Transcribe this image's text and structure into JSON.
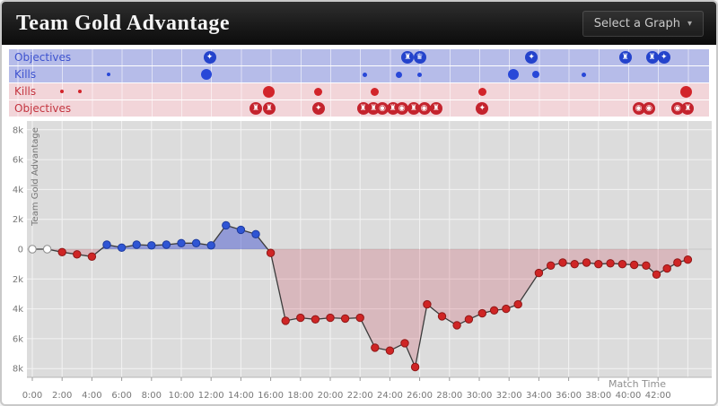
{
  "header": {
    "title": "Team Gold Advantage",
    "select_graph_label": "Select a Graph",
    "dropdown_icon": "▾"
  },
  "colors": {
    "blue": "#2f55d4",
    "blue_dark": "#1d3a9e",
    "red": "#cf2525",
    "red_dark": "#8f1717",
    "lane_blue_bg": "#b6bce9",
    "lane_red_bg": "#f2d5d9",
    "blue_fill": "rgba(72,88,208,0.50)",
    "red_fill": "rgba(204,60,80,0.22)",
    "plot_bg": "#dcdcdc"
  },
  "icon_glyphs": {
    "turret": "♜",
    "dragon": "✦",
    "baron": "♛",
    "inhibitor": "◉"
  },
  "lanes": [
    {
      "id": "blue-objectives",
      "kind": "objectives",
      "label": "Objectives",
      "bg": "#b6bce9",
      "text_color": "#3d52cf",
      "marker_color": "#2443cc",
      "events": [
        {
          "t": 11.9,
          "icon": "dragon"
        },
        {
          "t": 25.2,
          "icon": "turret"
        },
        {
          "t": 26.0,
          "icon": "baron"
        },
        {
          "t": 33.5,
          "icon": "dragon"
        },
        {
          "t": 39.8,
          "icon": "turret"
        },
        {
          "t": 41.6,
          "icon": "turret"
        },
        {
          "t": 42.4,
          "icon": "dragon"
        }
      ]
    },
    {
      "id": "blue-kills",
      "kind": "kills",
      "label": "Kills",
      "bg": "#b6bce9",
      "text_color": "#3d52cf",
      "marker_color": "#2848d8",
      "events": [
        {
          "t": 5.1,
          "r": 2
        },
        {
          "t": 11.7,
          "r": 6
        },
        {
          "t": 22.3,
          "r": 2.5
        },
        {
          "t": 24.6,
          "r": 3.5
        },
        {
          "t": 26.0,
          "r": 2.5
        },
        {
          "t": 32.3,
          "r": 6
        },
        {
          "t": 33.8,
          "r": 4
        },
        {
          "t": 37.0,
          "r": 2.5
        }
      ]
    },
    {
      "id": "red-kills",
      "kind": "kills",
      "label": "Kills",
      "bg": "#f2d5d9",
      "text_color": "#c43540",
      "marker_color": "#d2242a",
      "events": [
        {
          "t": 2.0,
          "r": 2
        },
        {
          "t": 3.2,
          "r": 2
        },
        {
          "t": 15.9,
          "r": 6.5
        },
        {
          "t": 19.2,
          "r": 4.5
        },
        {
          "t": 23.0,
          "r": 4.5
        },
        {
          "t": 30.2,
          "r": 4.5
        },
        {
          "t": 43.9,
          "r": 6.5
        }
      ]
    },
    {
      "id": "red-objectives",
      "kind": "objectives",
      "label": "Objectives",
      "bg": "#f2d5d9",
      "text_color": "#c43540",
      "marker_color": "#c4232d",
      "events": [
        {
          "t": 15.0,
          "icon": "turret"
        },
        {
          "t": 15.9,
          "icon": "turret"
        },
        {
          "t": 19.2,
          "icon": "dragon"
        },
        {
          "t": 22.2,
          "icon": "turret"
        },
        {
          "t": 22.9,
          "icon": "turret"
        },
        {
          "t": 23.5,
          "icon": "inhibitor"
        },
        {
          "t": 24.2,
          "icon": "turret"
        },
        {
          "t": 24.8,
          "icon": "inhibitor"
        },
        {
          "t": 25.6,
          "icon": "turret"
        },
        {
          "t": 26.3,
          "icon": "inhibitor"
        },
        {
          "t": 27.1,
          "icon": "turret"
        },
        {
          "t": 30.2,
          "icon": "dragon"
        },
        {
          "t": 40.7,
          "icon": "inhibitor"
        },
        {
          "t": 41.4,
          "icon": "inhibitor"
        },
        {
          "t": 43.3,
          "icon": "inhibitor"
        },
        {
          "t": 44.0,
          "icon": "turret"
        }
      ]
    }
  ],
  "chart_data": {
    "type": "line",
    "title": "Team Gold Advantage",
    "xlabel": "Match Time",
    "ylabel": "Team Gold Advantage",
    "x_unit": "minutes",
    "y_unit": "gold",
    "ylim": [
      -8600,
      8600
    ],
    "xlim": [
      0,
      44.5
    ],
    "grid": true,
    "x_ticks": [
      "0:00",
      "2:00",
      "4:00",
      "6:00",
      "8:00",
      "10:00",
      "12:00",
      "14:00",
      "16:00",
      "18:00",
      "20:00",
      "22:00",
      "24:00",
      "26:00",
      "28:00",
      "30:00",
      "32:00",
      "34:00",
      "36:00",
      "38:00",
      "40:00",
      "42:00"
    ],
    "y_ticks": [
      {
        "v": 8000,
        "label": "8k"
      },
      {
        "v": 6000,
        "label": "6k"
      },
      {
        "v": 4000,
        "label": "4k"
      },
      {
        "v": 2000,
        "label": "2k"
      },
      {
        "v": 0,
        "label": "0"
      },
      {
        "v": -2000,
        "label": "2k"
      },
      {
        "v": -4000,
        "label": "4k"
      },
      {
        "v": -6000,
        "label": "6k"
      },
      {
        "v": -8000,
        "label": "8k"
      }
    ],
    "points": [
      {
        "t": 0,
        "v": 0
      },
      {
        "t": 1,
        "v": 0
      },
      {
        "t": 2,
        "v": -200
      },
      {
        "t": 3,
        "v": -350
      },
      {
        "t": 4,
        "v": -500
      },
      {
        "t": 5,
        "v": 300
      },
      {
        "t": 6,
        "v": 100
      },
      {
        "t": 7,
        "v": 300
      },
      {
        "t": 8,
        "v": 250
      },
      {
        "t": 9,
        "v": 300
      },
      {
        "t": 10,
        "v": 400
      },
      {
        "t": 11,
        "v": 400
      },
      {
        "t": 12,
        "v": 250
      },
      {
        "t": 13,
        "v": 1600
      },
      {
        "t": 14,
        "v": 1300
      },
      {
        "t": 15,
        "v": 1000
      },
      {
        "t": 16,
        "v": -250
      },
      {
        "t": 17,
        "v": -4800
      },
      {
        "t": 18,
        "v": -4600
      },
      {
        "t": 19,
        "v": -4700
      },
      {
        "t": 20,
        "v": -4600
      },
      {
        "t": 21,
        "v": -4650
      },
      {
        "t": 22,
        "v": -4600
      },
      {
        "t": 23,
        "v": -6600
      },
      {
        "t": 24,
        "v": -6800
      },
      {
        "t": 25,
        "v": -6300
      },
      {
        "t": 25.7,
        "v": -7900
      },
      {
        "t": 26.5,
        "v": -3700
      },
      {
        "t": 27.5,
        "v": -4500
      },
      {
        "t": 28.5,
        "v": -5100
      },
      {
        "t": 29.3,
        "v": -4700
      },
      {
        "t": 30.2,
        "v": -4300
      },
      {
        "t": 31,
        "v": -4100
      },
      {
        "t": 31.8,
        "v": -4000
      },
      {
        "t": 32.6,
        "v": -3700
      },
      {
        "t": 34,
        "v": -1600
      },
      {
        "t": 34.8,
        "v": -1100
      },
      {
        "t": 35.6,
        "v": -900
      },
      {
        "t": 36.4,
        "v": -1000
      },
      {
        "t": 37.2,
        "v": -900
      },
      {
        "t": 38,
        "v": -1000
      },
      {
        "t": 38.8,
        "v": -950
      },
      {
        "t": 39.6,
        "v": -1000
      },
      {
        "t": 40.4,
        "v": -1050
      },
      {
        "t": 41.2,
        "v": -1100
      },
      {
        "t": 41.9,
        "v": -1700
      },
      {
        "t": 42.6,
        "v": -1300
      },
      {
        "t": 43.3,
        "v": -900
      },
      {
        "t": 44,
        "v": -700
      }
    ]
  }
}
